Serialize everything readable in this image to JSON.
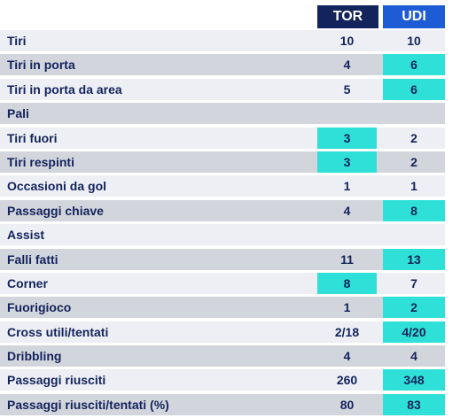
{
  "header": {
    "home_team": "TOR",
    "away_team": "UDI"
  },
  "colors": {
    "home_header": "#13235b",
    "away_header": "#1e5cd6",
    "highlight": "#2ee0d8",
    "text": "#13235b"
  },
  "rows": [
    {
      "label": "Tiri",
      "home": "10",
      "away": "10",
      "lead": ""
    },
    {
      "label": "Tiri in porta",
      "home": "4",
      "away": "6",
      "lead": "away"
    },
    {
      "label": "Tiri in porta da area",
      "home": "5",
      "away": "6",
      "lead": "away"
    },
    {
      "label": "Pali",
      "home": "",
      "away": "",
      "lead": ""
    },
    {
      "label": "Tiri fuori",
      "home": "3",
      "away": "2",
      "lead": "home"
    },
    {
      "label": "Tiri respinti",
      "home": "3",
      "away": "2",
      "lead": "home"
    },
    {
      "label": "Occasioni da gol",
      "home": "1",
      "away": "1",
      "lead": ""
    },
    {
      "label": "Passaggi chiave",
      "home": "4",
      "away": "8",
      "lead": "away"
    },
    {
      "label": "Assist",
      "home": "",
      "away": "",
      "lead": ""
    },
    {
      "label": "Falli fatti",
      "home": "11",
      "away": "13",
      "lead": "away"
    },
    {
      "label": "Corner",
      "home": "8",
      "away": "7",
      "lead": "home"
    },
    {
      "label": "Fuorigioco",
      "home": "1",
      "away": "2",
      "lead": "away"
    },
    {
      "label": "Cross utili/tentati",
      "home": "2/18",
      "away": "4/20",
      "lead": "away"
    },
    {
      "label": "Dribbling",
      "home": "4",
      "away": "4",
      "lead": ""
    },
    {
      "label": "Passaggi riusciti",
      "home": "260",
      "away": "348",
      "lead": "away"
    },
    {
      "label": "Passaggi riusciti/tentati (%)",
      "home": "80",
      "away": "83",
      "lead": "away"
    }
  ]
}
